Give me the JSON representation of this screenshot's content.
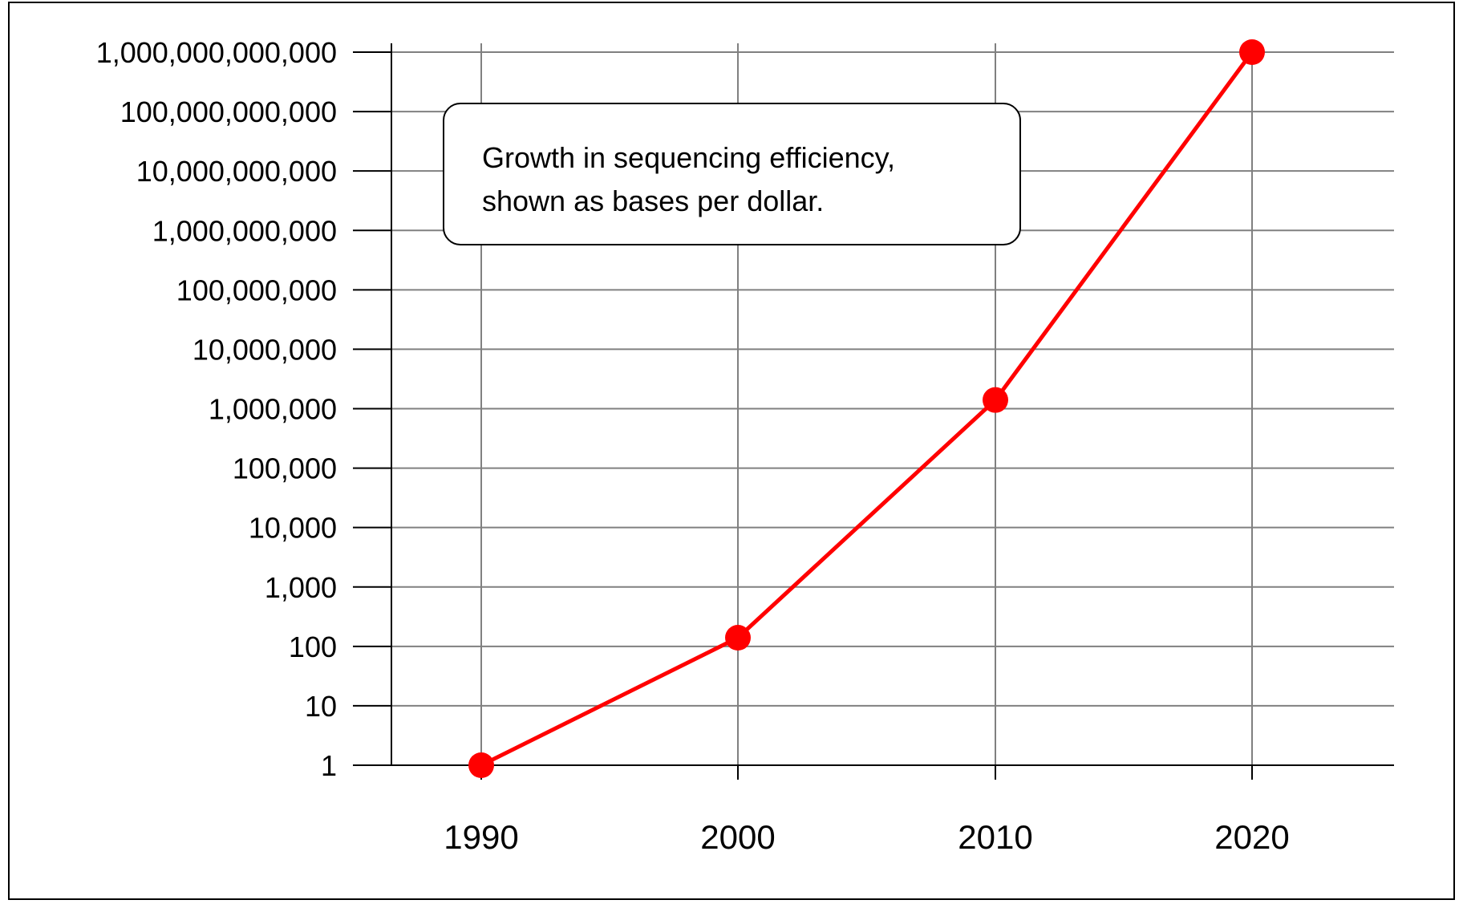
{
  "chart_data": {
    "type": "line",
    "title": "",
    "xlabel": "",
    "ylabel": "",
    "x_categories": [
      "1990",
      "2000",
      "2010",
      "2020"
    ],
    "y_scale": "log",
    "y_tick_values": [
      1,
      10,
      100,
      1000,
      10000,
      100000,
      1000000,
      10000000,
      100000000,
      1000000000,
      10000000000,
      100000000000,
      1000000000000
    ],
    "y_tick_labels": [
      "1",
      "10",
      "100",
      "1,000",
      "10,000",
      "100,000",
      "1,000,000",
      "10,000,000",
      "100,000,000",
      "1,000,000,000",
      "10,000,000,000",
      "100,000,000,000",
      "1,000,000,000,000"
    ],
    "ylim": [
      1,
      1000000000000
    ],
    "grid": true,
    "series": [
      {
        "values": [
          1,
          140,
          1400000,
          1000000000000
        ],
        "color": "#ff0000"
      }
    ],
    "annotation": {
      "lines": [
        "Growth in sequencing efficiency,",
        "shown as bases per dollar."
      ]
    }
  }
}
